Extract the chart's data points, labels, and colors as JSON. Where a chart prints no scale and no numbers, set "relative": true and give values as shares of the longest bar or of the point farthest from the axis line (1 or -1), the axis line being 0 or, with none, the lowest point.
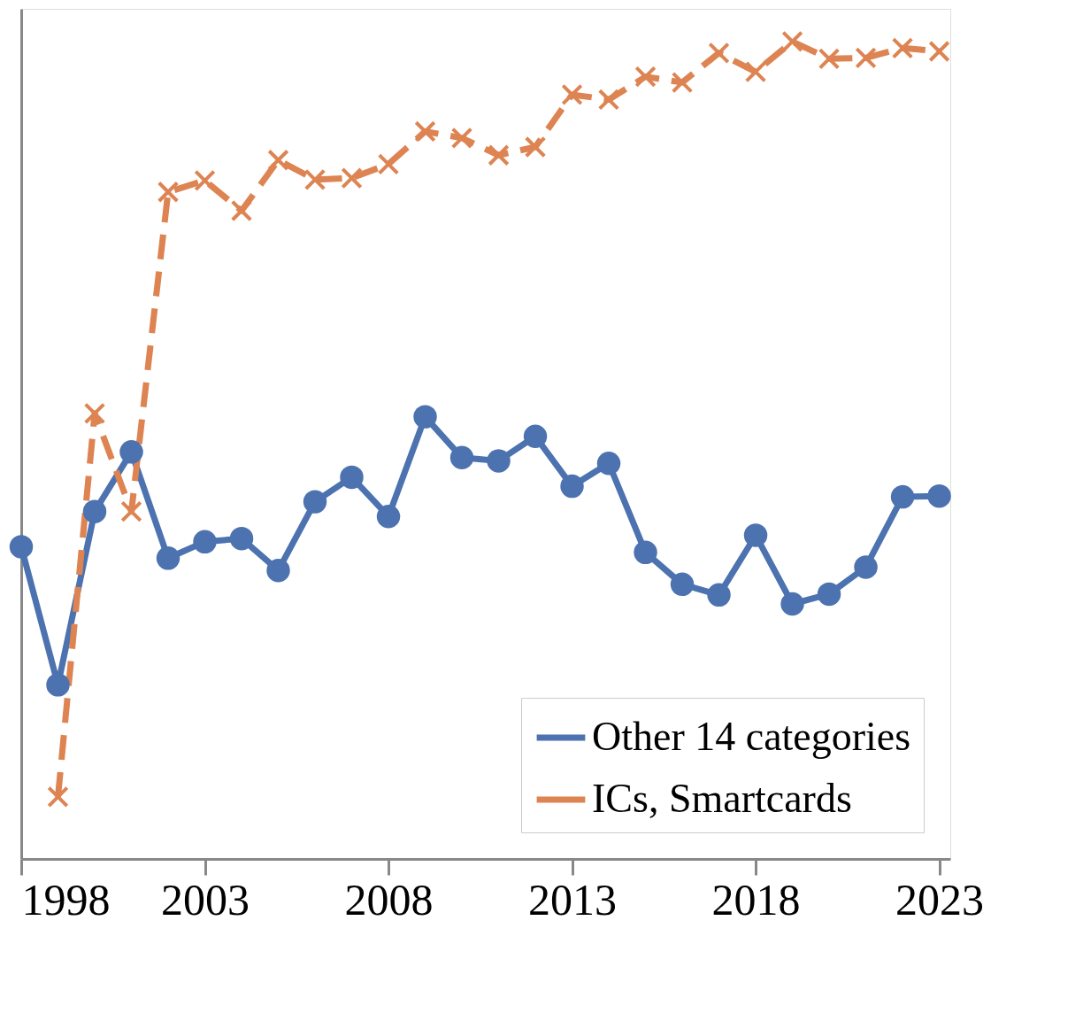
{
  "chart_data": {
    "type": "line",
    "relative": true,
    "x": [
      1998,
      1999,
      2000,
      2001,
      2002,
      2003,
      2004,
      2005,
      2006,
      2007,
      2008,
      2009,
      2010,
      2011,
      2012,
      2013,
      2014,
      2015,
      2016,
      2017,
      2018,
      2019,
      2020,
      2021,
      2022,
      2023
    ],
    "xlim": [
      1998,
      2023.3
    ],
    "xticks": [
      1998,
      2003,
      2008,
      2013,
      2018,
      2023
    ],
    "series": [
      {
        "name": "Other 14 categories",
        "color": "#4c72b0",
        "marker": "circle",
        "line_style": "solid",
        "values": [
          0.382,
          0.213,
          0.425,
          0.498,
          0.368,
          0.388,
          0.392,
          0.353,
          0.437,
          0.467,
          0.419,
          0.541,
          0.491,
          0.487,
          0.517,
          0.456,
          0.484,
          0.375,
          0.336,
          0.323,
          0.396,
          0.312,
          0.324,
          0.357,
          0.443,
          0.444
        ]
      },
      {
        "name": "ICs, Smartcards",
        "color": "#dd8452",
        "marker": "cross",
        "line_style": "dashed",
        "values": [
          null,
          0.076,
          0.545,
          0.425,
          0.816,
          0.83,
          0.793,
          0.855,
          0.831,
          0.833,
          0.85,
          0.89,
          0.882,
          0.861,
          0.871,
          0.935,
          0.929,
          0.957,
          0.95,
          0.986,
          0.963,
          1,
          0.979,
          0.98,
          0.992,
          0.988
        ]
      }
    ],
    "legend": "bottom right",
    "grid": false
  }
}
